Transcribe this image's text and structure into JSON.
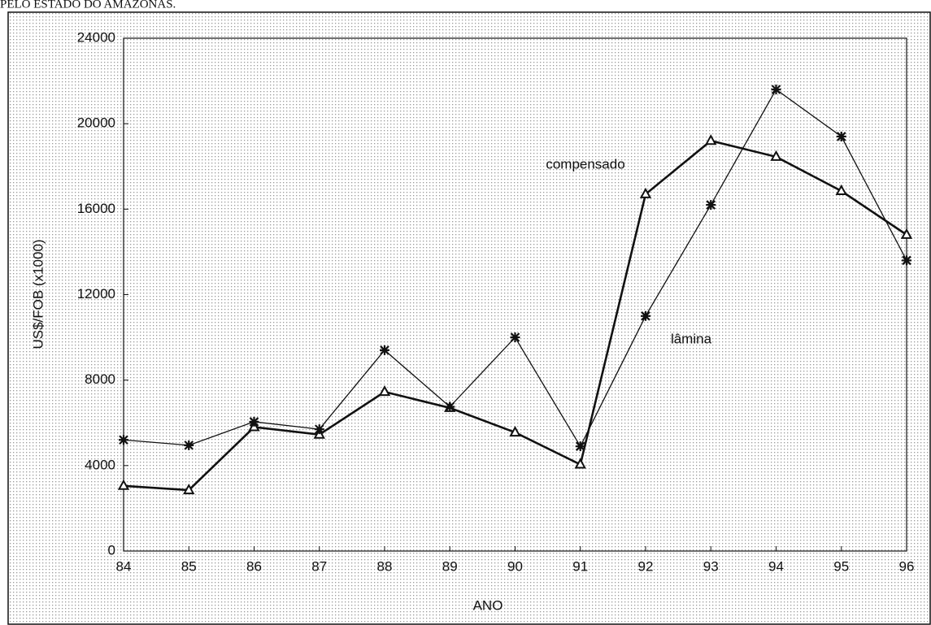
{
  "caption": "PELO ESTADO DO AMAZONAS.",
  "chart_data": {
    "type": "line",
    "xlabel": "ANO",
    "ylabel": "US$/FOB (x1000)",
    "categories": [
      "84",
      "85",
      "86",
      "87",
      "88",
      "89",
      "90",
      "91",
      "92",
      "93",
      "94",
      "95",
      "96"
    ],
    "series": [
      {
        "name": "compensado",
        "color": "#111111",
        "marker": "triangle",
        "values": [
          3050,
          2850,
          5800,
          5450,
          7450,
          6700,
          5550,
          4050,
          16700,
          19200,
          18450,
          16850,
          14800
        ]
      },
      {
        "name": "lâmina",
        "color": "#111111",
        "marker": "asterisk",
        "values": [
          5200,
          4950,
          6050,
          5700,
          9400,
          6750,
          10000,
          4900,
          11000,
          16200,
          21600,
          19400,
          13600
        ]
      }
    ],
    "ylim": [
      0,
      24000
    ],
    "yticks": [
      0,
      4000,
      8000,
      12000,
      16000,
      20000,
      24000
    ]
  }
}
